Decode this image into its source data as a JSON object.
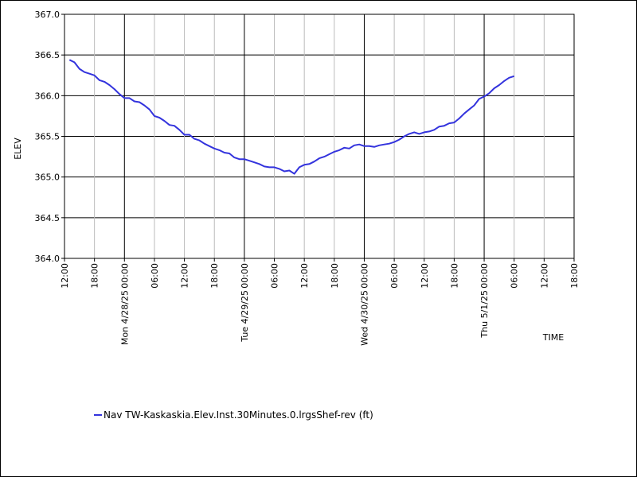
{
  "chart_data": {
    "type": "line",
    "title": "",
    "xlabel": "TIME",
    "ylabel": "ELEV",
    "ylim": [
      364.0,
      367.0
    ],
    "y_ticks": [
      364.0,
      364.5,
      365.0,
      365.5,
      366.0,
      366.5,
      367.0
    ],
    "y_tick_labels": [
      "364.0",
      "364.5",
      "365.0",
      "365.5",
      "366.0",
      "366.5",
      "367.0"
    ],
    "x_range_hours": [
      0,
      102
    ],
    "x_ticks": [
      {
        "label": "12:00",
        "date": ""
      },
      {
        "label": "18:00",
        "date": ""
      },
      {
        "label": "00:00",
        "date": "Mon 4/28/25"
      },
      {
        "label": "06:00",
        "date": ""
      },
      {
        "label": "12:00",
        "date": ""
      },
      {
        "label": "18:00",
        "date": ""
      },
      {
        "label": "00:00",
        "date": "Tue 4/29/25"
      },
      {
        "label": "06:00",
        "date": ""
      },
      {
        "label": "12:00",
        "date": ""
      },
      {
        "label": "18:00",
        "date": ""
      },
      {
        "label": "00:00",
        "date": "Wed 4/30/25"
      },
      {
        "label": "06:00",
        "date": ""
      },
      {
        "label": "12:00",
        "date": ""
      },
      {
        "label": "18:00",
        "date": ""
      },
      {
        "label": "00:00",
        "date": "Thu 5/1/25"
      },
      {
        "label": "06:00",
        "date": ""
      },
      {
        "label": "12:00",
        "date": ""
      },
      {
        "label": "18:00",
        "date": ""
      }
    ],
    "grid": true,
    "legend_position": "bottom-left",
    "series": [
      {
        "name": "Nav TW-Kaskaskia.Elev.Inst.30Minutes.0.lrgsShef-rev (ft)",
        "color": "#3333dd",
        "points": [
          [
            1,
            366.44
          ],
          [
            2,
            366.41
          ],
          [
            3,
            366.33
          ],
          [
            4,
            366.29
          ],
          [
            5,
            366.27
          ],
          [
            6,
            366.25
          ],
          [
            7,
            366.19
          ],
          [
            8,
            366.17
          ],
          [
            9,
            366.13
          ],
          [
            10,
            366.08
          ],
          [
            11,
            366.02
          ],
          [
            12,
            365.97
          ],
          [
            13,
            365.97
          ],
          [
            14,
            365.93
          ],
          [
            15,
            365.92
          ],
          [
            16,
            365.88
          ],
          [
            17,
            365.83
          ],
          [
            18,
            365.75
          ],
          [
            19,
            365.73
          ],
          [
            20,
            365.69
          ],
          [
            21,
            365.64
          ],
          [
            22,
            365.63
          ],
          [
            23,
            365.58
          ],
          [
            24,
            365.52
          ],
          [
            25,
            365.52
          ],
          [
            26,
            365.47
          ],
          [
            27,
            365.45
          ],
          [
            28,
            365.41
          ],
          [
            29,
            365.38
          ],
          [
            30,
            365.35
          ],
          [
            31,
            365.33
          ],
          [
            32,
            365.3
          ],
          [
            33,
            365.29
          ],
          [
            34,
            365.24
          ],
          [
            35,
            365.22
          ],
          [
            36,
            365.22
          ],
          [
            37,
            365.2
          ],
          [
            38,
            365.18
          ],
          [
            39,
            365.16
          ],
          [
            40,
            365.13
          ],
          [
            41,
            365.12
          ],
          [
            42,
            365.12
          ],
          [
            43,
            365.1
          ],
          [
            44,
            365.07
          ],
          [
            45,
            365.08
          ],
          [
            46,
            365.04
          ],
          [
            47,
            365.12
          ],
          [
            48,
            365.15
          ],
          [
            49,
            365.16
          ],
          [
            50,
            365.19
          ],
          [
            51,
            365.23
          ],
          [
            52,
            365.25
          ],
          [
            53,
            365.28
          ],
          [
            54,
            365.31
          ],
          [
            55,
            365.33
          ],
          [
            56,
            365.36
          ],
          [
            57,
            365.35
          ],
          [
            58,
            365.39
          ],
          [
            59,
            365.4
          ],
          [
            60,
            365.38
          ],
          [
            61,
            365.38
          ],
          [
            62,
            365.37
          ],
          [
            63,
            365.39
          ],
          [
            64,
            365.4
          ],
          [
            65,
            365.41
          ],
          [
            66,
            365.43
          ],
          [
            67,
            365.46
          ],
          [
            68,
            365.5
          ],
          [
            69,
            365.53
          ],
          [
            70,
            365.55
          ],
          [
            71,
            365.53
          ],
          [
            72,
            365.55
          ],
          [
            73,
            365.56
          ],
          [
            74,
            365.58
          ],
          [
            75,
            365.62
          ],
          [
            76,
            365.63
          ],
          [
            77,
            365.66
          ],
          [
            78,
            365.67
          ],
          [
            79,
            365.72
          ],
          [
            80,
            365.78
          ],
          [
            81,
            365.83
          ],
          [
            82,
            365.88
          ],
          [
            83,
            365.96
          ],
          [
            84,
            365.99
          ],
          [
            85,
            366.03
          ],
          [
            86,
            366.09
          ],
          [
            87,
            366.13
          ],
          [
            88,
            366.18
          ],
          [
            89,
            366.22
          ],
          [
            90,
            366.24
          ]
        ]
      }
    ]
  }
}
